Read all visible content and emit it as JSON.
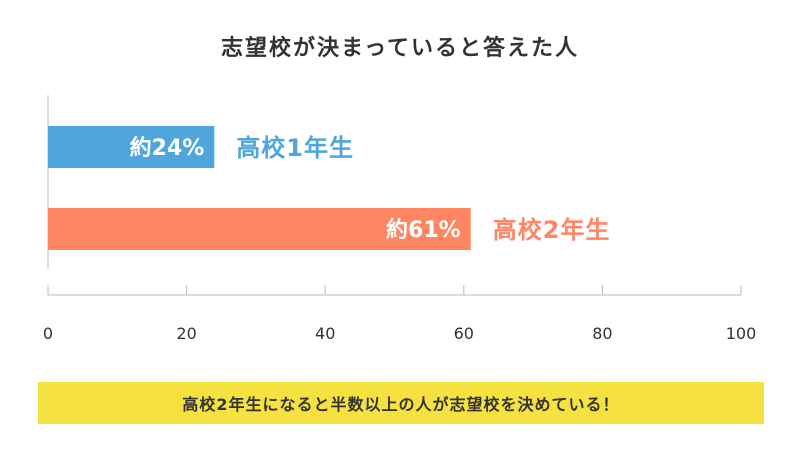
{
  "chart_data": {
    "type": "bar",
    "orientation": "horizontal",
    "title": "志望校が決まっていると答えた人",
    "categories": [
      "高校1年生",
      "高校2年生"
    ],
    "values": [
      24,
      61
    ],
    "value_labels": [
      "約24%",
      "約61%"
    ],
    "colors": [
      "#4ea6dc",
      "#ff8563"
    ],
    "xlim": [
      0,
      100
    ],
    "xticks": [
      0,
      20,
      40,
      60,
      80,
      100
    ],
    "xlabel": "",
    "ylabel": "",
    "grid": false,
    "legend": "none"
  },
  "note": "高校2年生になると半数以上の人が志望校を決めている！"
}
